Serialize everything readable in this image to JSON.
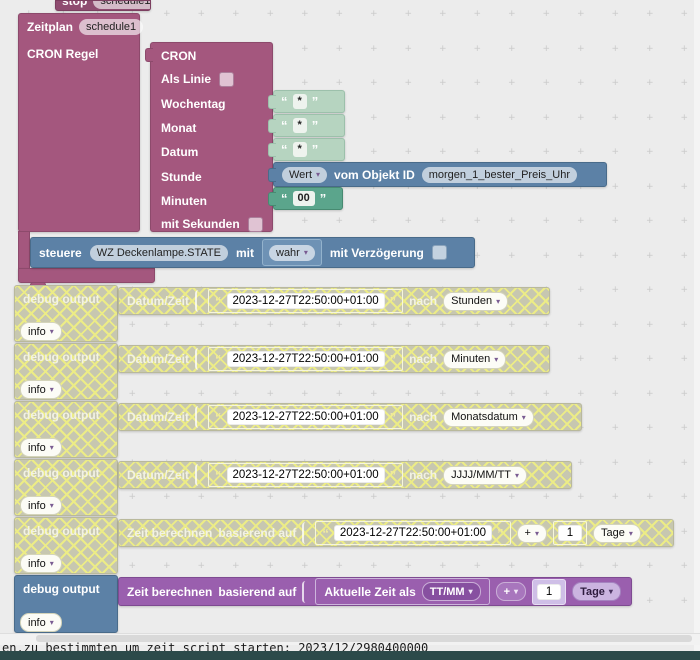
{
  "ui": {
    "arrow": "▾",
    "quote_open": "“",
    "quote_close": "”"
  },
  "colors": {
    "schedule_block": "#a4577e",
    "control_block": "#5c81a6",
    "time_block": "#9a5fae",
    "string_block": "#5ba58c",
    "string_shadow": "#b6d4c0",
    "disabled_base": "#c7c7b0",
    "disabled_hatch": "#ecec86",
    "workspace_bg": "#ececec",
    "statusbar": "#2c4a4a"
  },
  "top_block": {
    "text": "stop",
    "field": "schedule1"
  },
  "schedule": {
    "label": "Zeitplan",
    "name": "schedule1",
    "rule_label": "CRON Regel"
  },
  "cron": {
    "title": "CRON",
    "as_line_label": "Als Linie",
    "weekday_label": "Wochentag",
    "month_label": "Monat",
    "date_label": "Datum",
    "star": "*",
    "hour_label": "Stunde",
    "minute_label": "Minuten",
    "minute_value": "00",
    "with_seconds_label": "mit Sekunden"
  },
  "value_getter": {
    "attr": "Wert",
    "label": "vom Objekt ID",
    "object_id": "morgen_1_bester_Preis_Uhr"
  },
  "control": {
    "label": "steuere",
    "object_id": "WZ Deckenlampe.STATE",
    "with_label": "mit",
    "value": "wahr",
    "delay_label": "mit Verzögerung"
  },
  "debug_rows": [
    {
      "label": "debug output",
      "level": "info",
      "inner_label": "Datum/Zeit",
      "value": "2023-12-27T22:50:00+01:00",
      "nach": "nach",
      "format": "Stunden"
    },
    {
      "label": "debug output",
      "level": "info",
      "inner_label": "Datum/Zeit",
      "value": "2023-12-27T22:50:00+01:00",
      "nach": "nach",
      "format": "Minuten"
    },
    {
      "label": "debug output",
      "level": "info",
      "inner_label": "Datum/Zeit",
      "value": "2023-12-27T22:50:00+01:00",
      "nach": "nach",
      "format": "Monatsdatum"
    },
    {
      "label": "debug output",
      "level": "info",
      "inner_label": "Datum/Zeit",
      "value": "2023-12-27T22:50:00+01:00",
      "nach": "nach",
      "format": "JJJJ/MM/TT"
    },
    {
      "label": "debug output",
      "level": "info",
      "calc_label": "Zeit berechnen",
      "based_label": "basierend auf",
      "value": "2023-12-27T22:50:00+01:00",
      "op": "+",
      "amount": "1",
      "unit": "Tage"
    },
    {
      "label": "debug output",
      "level": "info",
      "calc_label": "Zeit berechnen",
      "based_label": "basierend auf",
      "current_label": "Aktuelle Zeit als",
      "format": "TT/MM",
      "op": "+",
      "amount": "1",
      "unit": "Tage"
    }
  ],
  "status_bar": {
    "log_text": "en.zu_bestimmten_um zeit_script_starten:  2023/12/2980400000"
  }
}
